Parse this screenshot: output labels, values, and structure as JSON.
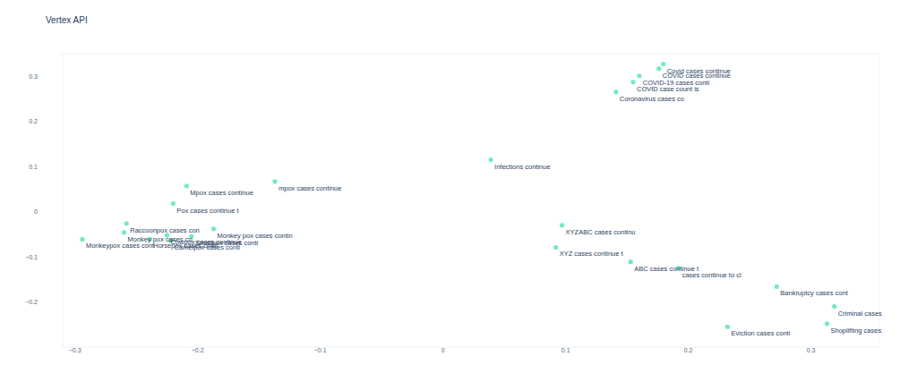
{
  "chart_data": {
    "type": "scatter",
    "title": "Vertex API",
    "color": "#74e9c3",
    "grid": false,
    "xlim": [
      -0.31,
      0.355
    ],
    "ylim": [
      -0.3,
      0.35
    ],
    "xticks": [
      {
        "value": -0.3,
        "label": "−0.3"
      },
      {
        "value": -0.2,
        "label": "−0.2"
      },
      {
        "value": -0.1,
        "label": "−0.1"
      },
      0,
      0.1,
      0.2,
      0.3
    ],
    "yticks": [
      {
        "value": -0.2,
        "label": "−0.2"
      },
      {
        "value": -0.1,
        "label": "−0.1"
      },
      0,
      0.1,
      0.2,
      0.3
    ],
    "labels": [
      "Covid cases continue",
      "COVID cases continue",
      "COVID-19 cases conti",
      "COVID case count is",
      "Coronavirus cases co",
      "Infections continue",
      "mpox cases continue",
      "Mpox cases continue",
      "Pox cases continue t",
      "Raccoonpox cases con",
      "Monkey pox cases co",
      "Monkeypox cases cont",
      "Horsepox cases conti",
      "Monkey pox cases contin",
      "Cowpox cases continue",
      "Camelpox cases conti",
      "Smallpox cases conti",
      "XYZABC cases continu",
      "XYZ cases continue t",
      "ABC cases continue t",
      "cases continue to cl",
      "Bankruptcy cases cont",
      "Criminal cases",
      "Shoplifting cases",
      "Eviction cases conti"
    ],
    "x": [
      0.1796,
      0.176,
      0.16,
      0.155,
      0.141,
      0.039,
      -0.137,
      -0.209,
      -0.22,
      -0.258,
      -0.26,
      -0.294,
      -0.239,
      -0.187,
      -0.225,
      -0.222,
      -0.205,
      0.097,
      0.092,
      0.153,
      0.192,
      0.272,
      0.319,
      0.313,
      0.232
    ],
    "values": [
      0.327,
      0.317,
      0.301,
      0.287,
      0.265,
      0.115,
      0.067,
      0.057,
      0.018,
      -0.026,
      -0.046,
      -0.061,
      -0.061,
      -0.038,
      -0.052,
      -0.064,
      -0.055,
      -0.03,
      -0.079,
      -0.111,
      -0.125,
      -0.166,
      -0.21,
      -0.248,
      -0.255
    ]
  }
}
